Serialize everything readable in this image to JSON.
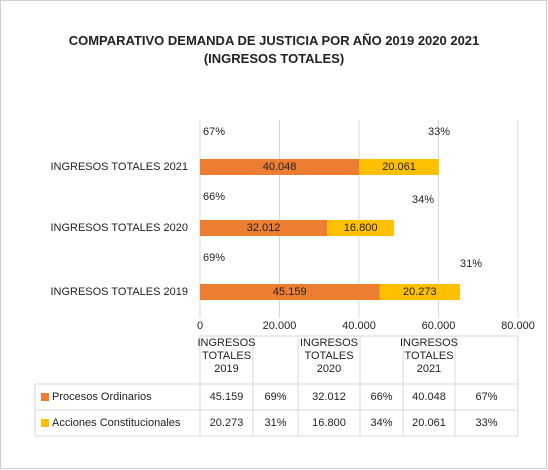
{
  "chart_data": {
    "type": "bar",
    "orientation": "horizontal",
    "stacked": true,
    "title": "COMPARATIVO DEMANDA DE JUSTICIA POR AÑO 2019 2020 2021 (INGRESOS TOTALES)",
    "categories": [
      "INGRESOS TOTALES 2021",
      "INGRESOS TOTALES 2020",
      "INGRESOS TOTALES 2019"
    ],
    "series": [
      {
        "name": "Procesos Ordinarios",
        "color": "#ED7D31",
        "values": [
          40048,
          32012,
          45159
        ],
        "value_labels": [
          "40.048",
          "32.012",
          "45.159"
        ],
        "percent_labels": [
          "67%",
          "66%",
          "69%"
        ]
      },
      {
        "name": "Acciones Constitucionales",
        "color": "#FFC000",
        "values": [
          20061,
          16800,
          20273
        ],
        "value_labels": [
          "20.061",
          "16.800",
          "20.273"
        ],
        "percent_labels": [
          "33%",
          "34%",
          "31%"
        ]
      }
    ],
    "xlim": [
      0,
      80000
    ],
    "xticks": [
      0,
      {
        "value": 20000,
        "label": "20.000"
      },
      {
        "value": 40000,
        "label": "40.000"
      },
      {
        "value": 60000,
        "label": "60.000"
      },
      {
        "value": 80000,
        "label": "80.000"
      }
    ],
    "grid": true,
    "data_table": true
  }
}
